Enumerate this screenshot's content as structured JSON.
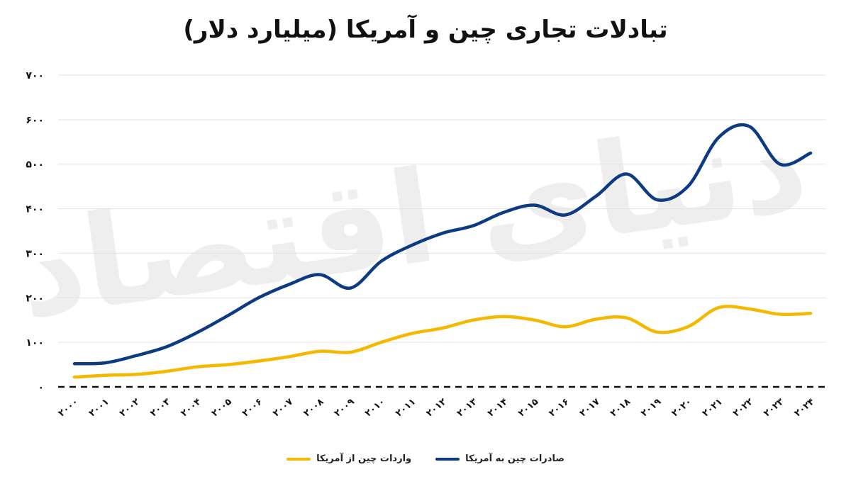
{
  "chart_data": {
    "type": "line",
    "title": "تبادلات تجاری چین و آمریکا (میلیارد دلار)",
    "xlabel": "",
    "ylabel": "",
    "ylim": [
      0,
      700
    ],
    "yticks": [
      0,
      100,
      200,
      300,
      400,
      500,
      600,
      700
    ],
    "ytick_labels": [
      "۰",
      "۱۰۰",
      "۲۰۰",
      "۳۰۰",
      "۴۰۰",
      "۵۰۰",
      "۶۰۰",
      "۷۰۰"
    ],
    "x": [
      2000,
      2001,
      2002,
      2003,
      2004,
      2005,
      2006,
      2007,
      2008,
      2009,
      2010,
      2011,
      2012,
      2013,
      2014,
      2015,
      2016,
      2017,
      2018,
      2019,
      2020,
      2021,
      2022,
      2023,
      2024
    ],
    "x_labels": [
      "۲۰۰۰",
      "۲۰۰۱",
      "۲۰۰۲",
      "۲۰۰۳",
      "۲۰۰۴",
      "۲۰۰۵",
      "۲۰۰۶",
      "۲۰۰۷",
      "۲۰۰۸",
      "۲۰۰۹",
      "۲۰۱۰",
      "۲۰۱۱",
      "۲۰۱۲",
      "۲۰۱۳",
      "۲۰۱۴",
      "۲۰۱۵",
      "۲۰۱۶",
      "۲۰۱۷",
      "۲۰۱۸",
      "۲۰۱۹",
      "۲۰۲۰",
      "۲۰۲۱",
      "۲۰۲۲",
      "۲۰۲۳",
      "۲۰۲۴"
    ],
    "grid": true,
    "zero_line": "dashed",
    "legend_position": "bottom",
    "watermark": "دنیای اقتصاد",
    "series": [
      {
        "name": "صادرات چین به آمریکا",
        "color": "#0d3b82",
        "values": [
          52,
          54,
          70,
          90,
          122,
          160,
          200,
          230,
          252,
          222,
          282,
          318,
          345,
          362,
          392,
          408,
          386,
          428,
          478,
          420,
          450,
          560,
          585,
          500,
          525
        ]
      },
      {
        "name": "واردات چین از آمریکا",
        "color": "#f5b800",
        "values": [
          22,
          26,
          28,
          35,
          45,
          50,
          58,
          68,
          80,
          78,
          100,
          120,
          132,
          150,
          158,
          150,
          135,
          152,
          155,
          123,
          135,
          178,
          175,
          163,
          165
        ]
      }
    ]
  }
}
